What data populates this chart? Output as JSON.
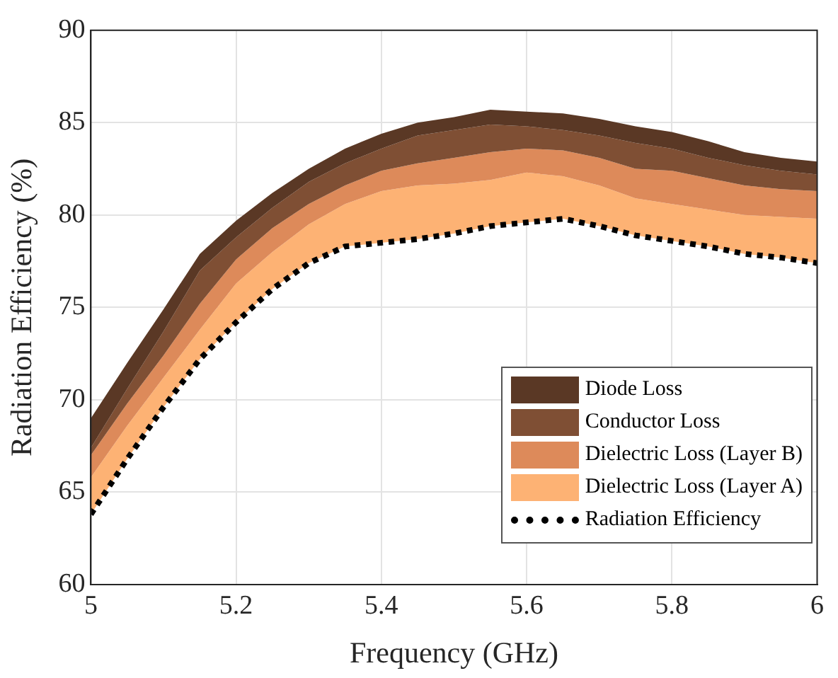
{
  "chart_data": {
    "type": "area",
    "xlabel": "Frequency (GHz)",
    "ylabel": "Radiation Efficiency (%)",
    "x": [
      5,
      5.05,
      5.1,
      5.15,
      5.2,
      5.25,
      5.3,
      5.35,
      5.4,
      5.45,
      5.5,
      5.55,
      5.6,
      5.65,
      5.7,
      5.75,
      5.8,
      5.85,
      5.9,
      5.95,
      6
    ],
    "series": [
      {
        "name": "Radiation Efficiency",
        "type": "line",
        "line_style": "dotted",
        "color": "#000000",
        "values": [
          63.8,
          66.8,
          69.6,
          72.2,
          74.2,
          76.0,
          77.4,
          78.3,
          78.5,
          78.7,
          79.0,
          79.4,
          79.6,
          79.8,
          79.4,
          78.9,
          78.6,
          78.3,
          77.9,
          77.7,
          77.4
        ]
      },
      {
        "name": "Dielectric Loss (Layer A)",
        "color": "#fdb274",
        "values": [
          65.8,
          68.6,
          71.2,
          73.8,
          76.3,
          78.0,
          79.5,
          80.6,
          81.3,
          81.6,
          81.7,
          81.9,
          82.3,
          82.1,
          81.6,
          80.9,
          80.6,
          80.3,
          80.0,
          79.9,
          79.8
        ]
      },
      {
        "name": "Dielectric Loss (Layer B)",
        "color": "#dd8a5a",
        "values": [
          67.0,
          69.8,
          72.4,
          75.2,
          77.6,
          79.3,
          80.6,
          81.6,
          82.4,
          82.8,
          83.1,
          83.4,
          83.6,
          83.5,
          83.1,
          82.5,
          82.4,
          82.0,
          81.6,
          81.4,
          81.3
        ]
      },
      {
        "name": "Conductor Loss",
        "color": "#7f4f34",
        "values": [
          67.4,
          70.6,
          73.7,
          77.0,
          78.8,
          80.4,
          81.8,
          82.8,
          83.6,
          84.3,
          84.6,
          84.9,
          84.8,
          84.6,
          84.3,
          83.9,
          83.6,
          83.1,
          82.7,
          82.4,
          82.2
        ]
      },
      {
        "name": "Diode Loss",
        "color": "#5a3825",
        "values": [
          69.0,
          72.0,
          74.9,
          77.9,
          79.7,
          81.2,
          82.5,
          83.6,
          84.4,
          85.0,
          85.3,
          85.7,
          85.6,
          85.5,
          85.2,
          84.8,
          84.5,
          84.0,
          83.4,
          83.1,
          82.9
        ]
      }
    ],
    "xlim": [
      5,
      6
    ],
    "xticks": [
      5,
      5.2,
      5.4,
      5.6,
      5.8,
      6
    ],
    "ylim": [
      60,
      90
    ],
    "yticks": [
      60,
      65,
      70,
      75,
      80,
      85,
      90
    ],
    "grid": true,
    "legend": "bottom right"
  }
}
